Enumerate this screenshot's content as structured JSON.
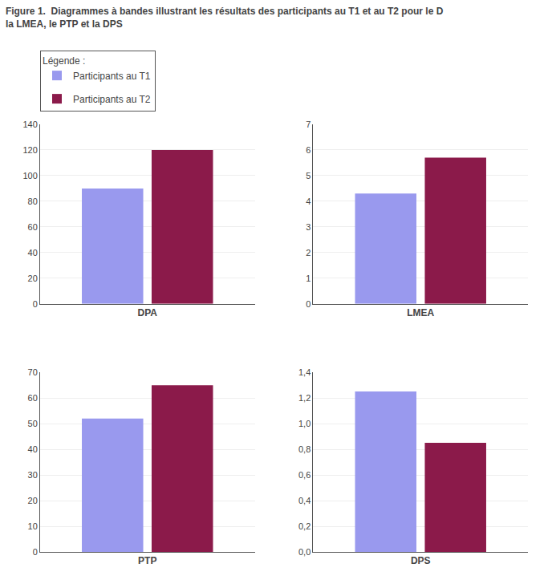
{
  "chart_data": [
    {
      "type": "bar",
      "title": "Figure 1.  Diagrammes à bandes illustrant les résultats des participants au T1 et au T2 pour le D\nla LMEA, le PTP et la DPS",
      "legend_title": "Légende :",
      "legend": "top left",
      "xlabel": "DPA",
      "categories": [
        null
      ],
      "series": [
        {
          "name": "Participants au T1",
          "color": "#9999EE",
          "values": [
            90
          ]
        },
        {
          "name": "Participants au T2",
          "color": "#8B1A4A",
          "values": [
            120
          ]
        }
      ],
      "ylim": [
        0,
        140
      ],
      "yticks": [
        0,
        20,
        40,
        60,
        80,
        100,
        120,
        140
      ],
      "grid": true,
      "tick_labels": "y"
    },
    {
      "type": "bar",
      "xlabel": "LMEA",
      "categories": [
        null
      ],
      "series": [
        {
          "name": "Participants au T1",
          "color": "#9999EE",
          "values": [
            4.3
          ]
        },
        {
          "name": "Participants au T2",
          "color": "#8B1A4A",
          "values": [
            5.7
          ]
        }
      ],
      "ylim": [
        0,
        7
      ],
      "yticks": [
        0,
        1,
        2,
        3,
        4,
        5,
        6,
        7
      ],
      "grid": true,
      "tick_labels": "y"
    },
    {
      "type": "bar",
      "xlabel": "PTP",
      "categories": [
        null
      ],
      "series": [
        {
          "name": "Participants au T1",
          "color": "#9999EE",
          "values": [
            52
          ]
        },
        {
          "name": "Participants au T2",
          "color": "#8B1A4A",
          "values": [
            65
          ]
        }
      ],
      "ylim": [
        0,
        70
      ],
      "yticks": [
        0,
        10,
        20,
        30,
        40,
        50,
        60,
        70
      ],
      "grid": true,
      "tick_labels": "y"
    },
    {
      "type": "bar",
      "xlabel": "DPS",
      "categories": [
        null
      ],
      "series": [
        {
          "name": "Participants au T1",
          "color": "#9999EE",
          "values": [
            1.25
          ]
        },
        {
          "name": "Participants au T2",
          "color": "#8B1A4A",
          "values": [
            0.85
          ]
        }
      ],
      "ylim": [
        0,
        1.4
      ],
      "yticks": [
        {
          "value": 0,
          "label": "0,0"
        },
        {
          "value": 0.2,
          "label": "0,2"
        },
        {
          "value": 0.4,
          "label": "0,4"
        },
        {
          "value": 0.6,
          "label": "0,6"
        },
        {
          "value": 0.8,
          "label": "0,8"
        },
        {
          "value": 1.0,
          "label": "1,0"
        },
        {
          "value": 1.2,
          "label": "1,2"
        },
        {
          "value": 1.4,
          "label": "1,4"
        }
      ],
      "grid": true,
      "tick_labels": "y"
    }
  ]
}
